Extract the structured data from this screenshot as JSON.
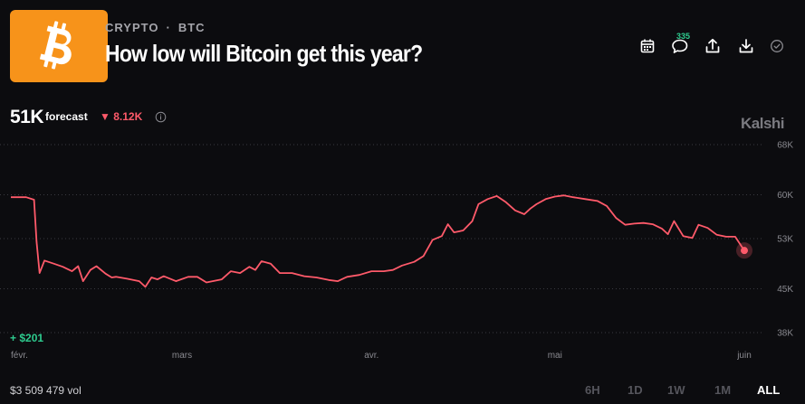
{
  "header": {
    "category": "CRYPTO",
    "separator": "·",
    "ticker": "BTC",
    "title": "How low will Bitcoin get this year?",
    "comment_count": "335"
  },
  "icons": {
    "logo": "bitcoin-logo",
    "calendar": "calendar-icon",
    "comments": "comment-icon",
    "share": "share-icon",
    "download": "download-icon",
    "check": "check-circle-icon",
    "info": "info-icon"
  },
  "forecast": {
    "value": "51K",
    "label": "forecast",
    "change": "▼ 8.12K"
  },
  "brand": "Kalshi",
  "pnl": "+ $201",
  "volume": "$3 509 479 vol",
  "time_ranges": [
    {
      "label": "6H",
      "active": false
    },
    {
      "label": "1D",
      "active": false
    },
    {
      "label": "1W",
      "active": false
    },
    {
      "label": "1M",
      "active": false
    },
    {
      "label": "ALL",
      "active": true
    }
  ],
  "colors": {
    "background": "#0c0c0f",
    "line": "#ff5a6a",
    "positive": "#2ecc8f",
    "logo": "#f7931a"
  },
  "chart_data": {
    "type": "line",
    "ylim": [
      38,
      68
    ],
    "y_ticks": [
      {
        "value": 68,
        "label": "68K"
      },
      {
        "value": 60,
        "label": "60K"
      },
      {
        "value": 53,
        "label": "53K"
      },
      {
        "value": 45,
        "label": "45K"
      },
      {
        "value": 38,
        "label": "38K"
      }
    ],
    "x_ticks": [
      {
        "t": 0,
        "label": "févr."
      },
      {
        "t": 28,
        "label": "mars"
      },
      {
        "t": 59,
        "label": "avr."
      },
      {
        "t": 89,
        "label": "mai"
      },
      {
        "t": 120,
        "label": "juin"
      }
    ],
    "xlim": [
      0,
      120
    ],
    "grid": "horizontal-dotted",
    "series": [
      {
        "values": [
          [
            0,
            59.6
          ],
          [
            2.5,
            59.6
          ],
          [
            3.8,
            59.2
          ],
          [
            4.2,
            52.5
          ],
          [
            4.7,
            47.5
          ],
          [
            5.5,
            49.5
          ],
          [
            7,
            49.0
          ],
          [
            8.5,
            48.5
          ],
          [
            10,
            47.8
          ],
          [
            11,
            48.6
          ],
          [
            11.8,
            46.2
          ],
          [
            13,
            48.0
          ],
          [
            14,
            48.6
          ],
          [
            15.5,
            47.4
          ],
          [
            16.5,
            46.8
          ],
          [
            17.2,
            46.9
          ],
          [
            19,
            46.6
          ],
          [
            21,
            46.2
          ],
          [
            22,
            45.3
          ],
          [
            23,
            46.8
          ],
          [
            24,
            46.5
          ],
          [
            25,
            47.0
          ],
          [
            27,
            46.2
          ],
          [
            29,
            46.9
          ],
          [
            30.5,
            46.9
          ],
          [
            32,
            46.0
          ],
          [
            33,
            46.2
          ],
          [
            34.5,
            46.5
          ],
          [
            36,
            47.8
          ],
          [
            37.5,
            47.5
          ],
          [
            39,
            48.5
          ],
          [
            40,
            48.0
          ],
          [
            41,
            49.4
          ],
          [
            42.5,
            49.0
          ],
          [
            44,
            47.5
          ],
          [
            46,
            47.5
          ],
          [
            48,
            47.0
          ],
          [
            50,
            46.8
          ],
          [
            52,
            46.4
          ],
          [
            53.5,
            46.2
          ],
          [
            55,
            46.9
          ],
          [
            57,
            47.2
          ],
          [
            59,
            47.8
          ],
          [
            61,
            47.8
          ],
          [
            62.5,
            48.0
          ],
          [
            64,
            48.7
          ],
          [
            66,
            49.3
          ],
          [
            67.5,
            50.2
          ],
          [
            69,
            52.8
          ],
          [
            70.5,
            53.4
          ],
          [
            71.5,
            55.3
          ],
          [
            72.5,
            54.0
          ],
          [
            74,
            54.3
          ],
          [
            75.5,
            55.8
          ],
          [
            76.5,
            58.5
          ],
          [
            78,
            59.3
          ],
          [
            79.5,
            59.8
          ],
          [
            81,
            58.8
          ],
          [
            82.5,
            57.5
          ],
          [
            84,
            56.9
          ],
          [
            85,
            57.8
          ],
          [
            86,
            58.5
          ],
          [
            87.5,
            59.3
          ],
          [
            89,
            59.7
          ],
          [
            90.5,
            59.9
          ],
          [
            92,
            59.6
          ],
          [
            94,
            59.3
          ],
          [
            96,
            59.0
          ],
          [
            97.5,
            58.2
          ],
          [
            99,
            56.3
          ],
          [
            100.5,
            55.2
          ],
          [
            102,
            55.4
          ],
          [
            103.5,
            55.5
          ],
          [
            105,
            55.3
          ],
          [
            106.5,
            54.6
          ],
          [
            107.5,
            53.7
          ],
          [
            108.5,
            55.8
          ],
          [
            110,
            53.4
          ],
          [
            111.5,
            53.1
          ],
          [
            112.5,
            55.2
          ],
          [
            114,
            54.7
          ],
          [
            115.5,
            53.6
          ],
          [
            117,
            53.3
          ],
          [
            118.5,
            53.3
          ],
          [
            120,
            51.1
          ]
        ]
      }
    ]
  }
}
